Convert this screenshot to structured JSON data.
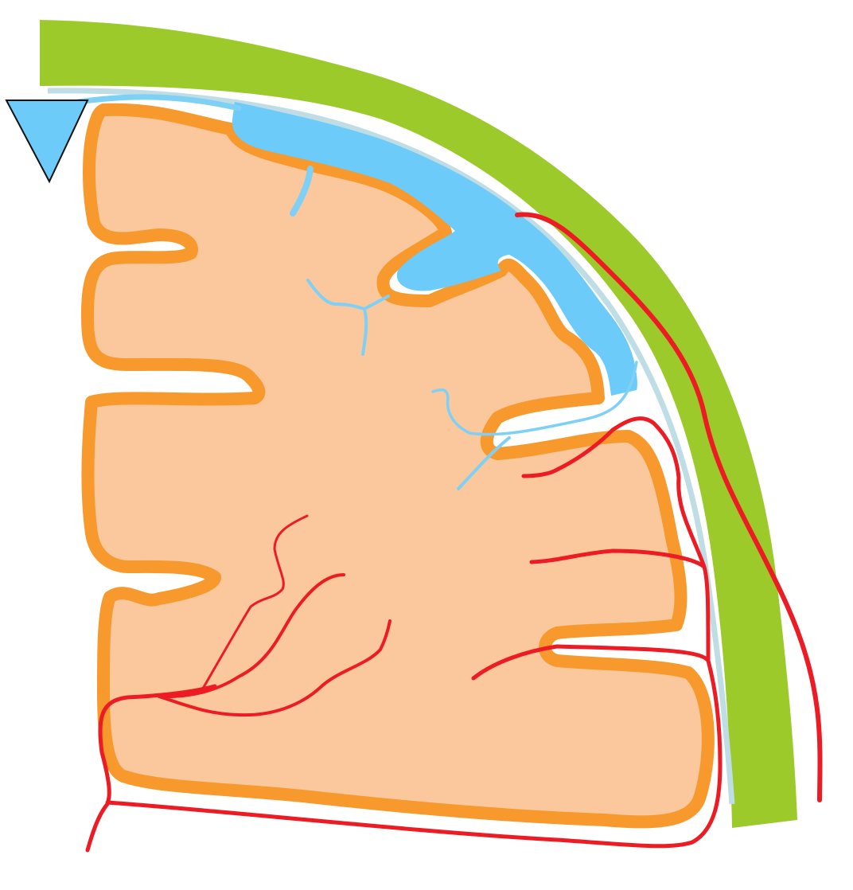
{
  "diagram": {
    "colors": {
      "background": "#ffffff",
      "skull": "#9cca2a",
      "membrane": "#bfdde4",
      "venous": "#6ccbf8",
      "venous_light": "#7fd0f5",
      "tissue_fill": "#fac89c",
      "tissue_outline": "#f7992d",
      "arterial": "#ed1c24",
      "triangle_outline": "#111111"
    },
    "elements": [
      "skull-band",
      "membrane-line",
      "venous-sinus",
      "venous-triangle-marker",
      "cortex-folds",
      "cortical-veins",
      "outer-artery",
      "inner-artery-loops",
      "penetrating-arteries"
    ]
  }
}
